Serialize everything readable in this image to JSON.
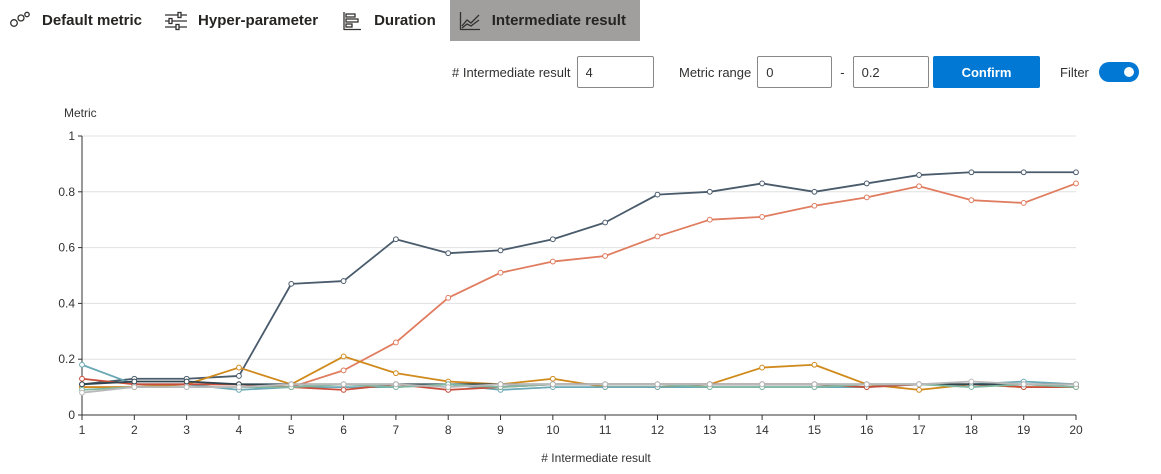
{
  "tabs": [
    {
      "label": "Default metric",
      "icon": "metric-icon",
      "active": false
    },
    {
      "label": "Hyper-parameter",
      "icon": "sliders-icon",
      "active": false
    },
    {
      "label": "Duration",
      "icon": "bar-chart-icon",
      "active": false
    },
    {
      "label": "Intermediate result",
      "icon": "line-chart-icon",
      "active": true
    }
  ],
  "controls": {
    "intermediate_label": "# Intermediate result",
    "intermediate_value": "4",
    "metric_range_label": "Metric range",
    "range_min": "0",
    "range_sep": "-",
    "range_max": "0.2",
    "confirm_label": "Confirm",
    "filter_label": "Filter",
    "filter_on": true
  },
  "chart_data": {
    "type": "line",
    "ylabel": "Metric",
    "xlabel": "# Intermediate result",
    "x": [
      1,
      2,
      3,
      4,
      5,
      6,
      7,
      8,
      9,
      10,
      11,
      12,
      13,
      14,
      15,
      16,
      17,
      18,
      19,
      20
    ],
    "ylim": [
      0,
      1
    ],
    "yticks": [
      0,
      0.2,
      0.4,
      0.6,
      0.8,
      1
    ],
    "ytick_labels": [
      "0",
      "0.2",
      "0.4",
      "0.6",
      "0.8",
      "1"
    ],
    "grid": true,
    "series": [
      {
        "color": "#4a5b6c",
        "values": [
          0.11,
          0.13,
          0.13,
          0.14,
          0.47,
          0.48,
          0.63,
          0.58,
          0.59,
          0.63,
          0.69,
          0.79,
          0.8,
          0.83,
          0.8,
          0.83,
          0.86,
          0.87,
          0.87,
          0.87
        ]
      },
      {
        "color": "#e07c5f",
        "values": [
          0.1,
          0.1,
          0.11,
          0.11,
          0.1,
          0.16,
          0.26,
          0.42,
          0.51,
          0.55,
          0.57,
          0.64,
          0.7,
          0.71,
          0.75,
          0.78,
          0.82,
          0.77,
          0.76,
          0.83
        ]
      },
      {
        "color": "#d08a1c",
        "values": [
          0.1,
          0.1,
          0.11,
          0.17,
          0.11,
          0.21,
          0.15,
          0.12,
          0.11,
          0.13,
          0.1,
          0.1,
          0.11,
          0.17,
          0.18,
          0.11,
          0.09,
          0.11,
          0.1,
          0.1
        ]
      },
      {
        "color": "#6aa9b5",
        "values": [
          0.18,
          0.11,
          0.11,
          0.09,
          0.1,
          0.1,
          0.1,
          0.11,
          0.09,
          0.1,
          0.1,
          0.1,
          0.1,
          0.1,
          0.1,
          0.1,
          0.11,
          0.11,
          0.12,
          0.11
        ]
      },
      {
        "color": "#c94f3c",
        "values": [
          0.13,
          0.11,
          0.11,
          0.11,
          0.1,
          0.09,
          0.11,
          0.09,
          0.1,
          0.11,
          0.11,
          0.11,
          0.11,
          0.11,
          0.11,
          0.1,
          0.11,
          0.11,
          0.1,
          0.1
        ]
      },
      {
        "color": "#2f4550",
        "values": [
          0.11,
          0.12,
          0.12,
          0.11,
          0.11,
          0.11,
          0.11,
          0.11,
          0.11,
          0.11,
          0.11,
          0.11,
          0.11,
          0.11,
          0.11,
          0.11,
          0.11,
          0.11,
          0.11,
          0.11
        ]
      },
      {
        "color": "#7fb7a0",
        "values": [
          0.09,
          0.1,
          0.1,
          0.1,
          0.1,
          0.11,
          0.1,
          0.11,
          0.1,
          0.11,
          0.11,
          0.11,
          0.1,
          0.1,
          0.1,
          0.11,
          0.11,
          0.1,
          0.11,
          0.1
        ]
      },
      {
        "color": "#b9b9b9",
        "values": [
          0.08,
          0.1,
          0.1,
          0.1,
          0.11,
          0.11,
          0.11,
          0.1,
          0.11,
          0.11,
          0.11,
          0.11,
          0.11,
          0.11,
          0.11,
          0.11,
          0.11,
          0.12,
          0.11,
          0.11
        ]
      }
    ]
  }
}
